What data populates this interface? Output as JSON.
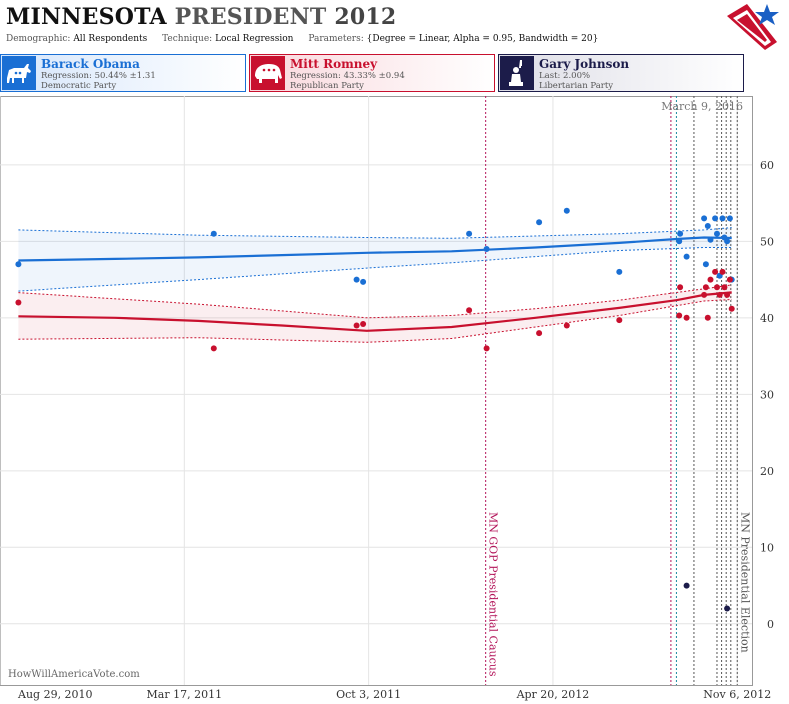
{
  "header": {
    "title_state": "MINNESOTA",
    "title_office": "PRESIDENT",
    "title_year": "2012",
    "demographic_label": "Demographic:",
    "demographic_value": "All Respondents",
    "technique_label": "Technique:",
    "technique_value": "Local Regression",
    "parameters_label": "Parameters:",
    "parameters_value": "{Degree = Linear, Alpha = 0.95, Bandwidth = 20}"
  },
  "candidates": [
    {
      "name": "Barack Obama",
      "stat": "Regression: 50.44% ±1.31",
      "party": "Democratic Party",
      "color": "#1a6fd4"
    },
    {
      "name": "Mitt Romney",
      "stat": "Regression: 43.33% ±0.94",
      "party": "Republican Party",
      "color": "#c8102e"
    },
    {
      "name": "Gary Johnson",
      "stat": "Last: 2.00%",
      "party": "Libertarian Party",
      "color": "#1c1c4a"
    }
  ],
  "watermark": "HowWillAmericaVote.com",
  "chart_data": {
    "type": "scatter",
    "x_axis": {
      "type": "date",
      "range": [
        "2010-08-29",
        "2012-11-22"
      ],
      "tick_labels": [
        "Aug 29, 2010",
        "Mar 17, 2011",
        "Oct 3, 2011",
        "Apr 20, 2012",
        "Nov 6, 2012"
      ],
      "tick_dates": [
        "2010-08-29",
        "2011-03-17",
        "2011-10-03",
        "2012-04-20",
        "2012-11-06"
      ]
    },
    "y_axis": {
      "range": [
        -8,
        69
      ],
      "ticks": [
        0,
        10,
        20,
        30,
        40,
        50,
        60
      ],
      "position": "right"
    },
    "grid": true,
    "date_annotation": "March 9, 2016",
    "events": [
      {
        "label": "MN GOP Presidential Caucus",
        "date": "2012-02-07",
        "color": "#b3155a"
      },
      {
        "label": "MN Presidential Election",
        "date": "2012-11-06",
        "color": "#555555"
      }
    ],
    "poll_lines": [
      {
        "date": "2012-08-26",
        "color": "#b3155a"
      },
      {
        "date": "2012-09-01",
        "color": "#1a8aa0"
      },
      {
        "date": "2012-09-20",
        "color": "#555555"
      },
      {
        "date": "2012-10-15",
        "color": "#555555"
      },
      {
        "date": "2012-10-20",
        "color": "#555555"
      },
      {
        "date": "2012-10-25",
        "color": "#555555"
      },
      {
        "date": "2012-10-30",
        "color": "#555555"
      }
    ],
    "series": [
      {
        "name": "Barack Obama",
        "color": "#1a6fd4",
        "points": [
          [
            "2010-09-18",
            47
          ],
          [
            "2011-04-18",
            51
          ],
          [
            "2011-09-20",
            45
          ],
          [
            "2011-09-27",
            44.7
          ],
          [
            "2012-01-20",
            51
          ],
          [
            "2012-02-08",
            49
          ],
          [
            "2012-04-05",
            52.5
          ],
          [
            "2012-05-05",
            54
          ],
          [
            "2012-07-01",
            46
          ],
          [
            "2012-09-04",
            50
          ],
          [
            "2012-09-05",
            51
          ],
          [
            "2012-09-12",
            48
          ],
          [
            "2012-10-01",
            53
          ],
          [
            "2012-10-03",
            47
          ],
          [
            "2012-10-05",
            52
          ],
          [
            "2012-10-08",
            50.2
          ],
          [
            "2012-10-13",
            53
          ],
          [
            "2012-10-15",
            51
          ],
          [
            "2012-10-18",
            45.5
          ],
          [
            "2012-10-21",
            53
          ],
          [
            "2012-10-23",
            50.5
          ],
          [
            "2012-10-26",
            50
          ],
          [
            "2012-10-29",
            53
          ],
          [
            "2012-10-31",
            45
          ]
        ],
        "regression": [
          [
            "2010-09-18",
            47.5
          ],
          [
            "2011-01-01",
            47.7
          ],
          [
            "2011-04-01",
            47.9
          ],
          [
            "2011-07-01",
            48.2
          ],
          [
            "2011-10-01",
            48.5
          ],
          [
            "2012-01-01",
            48.7
          ],
          [
            "2012-04-01",
            49.2
          ],
          [
            "2012-07-01",
            49.8
          ],
          [
            "2012-09-01",
            50.3
          ],
          [
            "2012-10-01",
            50.5
          ],
          [
            "2012-10-31",
            50.44
          ]
        ],
        "upper": [
          [
            "2010-09-18",
            51.5
          ],
          [
            "2011-04-01",
            50.8
          ],
          [
            "2011-10-01",
            50.5
          ],
          [
            "2012-01-01",
            50.4
          ],
          [
            "2012-04-01",
            50.7
          ],
          [
            "2012-07-01",
            51.0
          ],
          [
            "2012-10-01",
            51.5
          ],
          [
            "2012-10-31",
            51.8
          ]
        ],
        "lower": [
          [
            "2010-09-18",
            43.5
          ],
          [
            "2011-04-01",
            45.0
          ],
          [
            "2011-10-01",
            46.5
          ],
          [
            "2012-01-01",
            47.2
          ],
          [
            "2012-04-01",
            48.0
          ],
          [
            "2012-07-01",
            48.8
          ],
          [
            "2012-10-01",
            49.2
          ],
          [
            "2012-10-31",
            49.2
          ]
        ]
      },
      {
        "name": "Mitt Romney",
        "color": "#c8102e",
        "points": [
          [
            "2010-09-18",
            42
          ],
          [
            "2011-04-18",
            36
          ],
          [
            "2011-09-20",
            39
          ],
          [
            "2011-09-27",
            39.2
          ],
          [
            "2012-01-20",
            41
          ],
          [
            "2012-02-08",
            36
          ],
          [
            "2012-04-05",
            38
          ],
          [
            "2012-05-05",
            39
          ],
          [
            "2012-07-01",
            39.7
          ],
          [
            "2012-09-04",
            40.3
          ],
          [
            "2012-09-05",
            44
          ],
          [
            "2012-09-12",
            40
          ],
          [
            "2012-10-01",
            43
          ],
          [
            "2012-10-03",
            44
          ],
          [
            "2012-10-05",
            40
          ],
          [
            "2012-10-08",
            45
          ],
          [
            "2012-10-13",
            46
          ],
          [
            "2012-10-15",
            44
          ],
          [
            "2012-10-18",
            43
          ],
          [
            "2012-10-21",
            46
          ],
          [
            "2012-10-23",
            44
          ],
          [
            "2012-10-26",
            43
          ],
          [
            "2012-10-29",
            45
          ],
          [
            "2012-10-31",
            41.2
          ]
        ],
        "regression": [
          [
            "2010-09-18",
            40.2
          ],
          [
            "2011-01-01",
            40.0
          ],
          [
            "2011-04-01",
            39.6
          ],
          [
            "2011-07-01",
            39.0
          ],
          [
            "2011-10-01",
            38.3
          ],
          [
            "2012-01-01",
            38.8
          ],
          [
            "2012-04-01",
            40.0
          ],
          [
            "2012-07-01",
            41.3
          ],
          [
            "2012-09-01",
            42.3
          ],
          [
            "2012-10-01",
            43.0
          ],
          [
            "2012-10-31",
            43.33
          ]
        ],
        "upper": [
          [
            "2010-09-18",
            43.3
          ],
          [
            "2011-04-01",
            41.8
          ],
          [
            "2011-10-01",
            40.0
          ],
          [
            "2012-01-01",
            40.3
          ],
          [
            "2012-04-01",
            41.2
          ],
          [
            "2012-07-01",
            42.3
          ],
          [
            "2012-10-01",
            43.8
          ],
          [
            "2012-10-31",
            44.3
          ]
        ],
        "lower": [
          [
            "2010-09-18",
            37.2
          ],
          [
            "2011-04-01",
            37.4
          ],
          [
            "2011-10-01",
            36.8
          ],
          [
            "2012-01-01",
            37.3
          ],
          [
            "2012-04-01",
            38.8
          ],
          [
            "2012-07-01",
            40.3
          ],
          [
            "2012-10-01",
            42.2
          ],
          [
            "2012-10-31",
            42.4
          ]
        ]
      },
      {
        "name": "Gary Johnson",
        "color": "#1c1c4a",
        "points": [
          [
            "2012-09-12",
            5
          ],
          [
            "2012-10-26",
            2
          ]
        ]
      }
    ]
  }
}
